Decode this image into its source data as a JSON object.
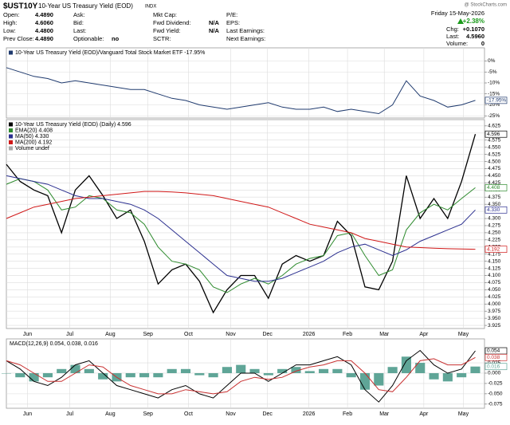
{
  "header": {
    "title": "$UST10Y",
    "subtitle": "10-Year US Treasury Yield (EOD)",
    "exchange": "INDX",
    "source": "@ StockCharts.com",
    "columns": [
      [
        {
          "label": "Open:",
          "value": "4.4890"
        },
        {
          "label": "High:",
          "value": "4.6060"
        },
        {
          "label": "Low:",
          "value": "4.4800"
        },
        {
          "label": "Prev Close:",
          "value": "4.4890"
        }
      ],
      [
        {
          "label": "Ask:"
        },
        {
          "label": "Bid:"
        },
        {
          "label": "Last:"
        },
        {
          "label": "Optionable:",
          "value": "no"
        }
      ],
      [
        {
          "label": "Mkt Cap:"
        },
        {
          "label": "Fwd Dividend:",
          "value": "N/A"
        },
        {
          "label": "Fwd Yield:",
          "value": "N/A"
        },
        {
          "label": "SCTR:"
        }
      ],
      [
        {
          "label": "P/E:"
        },
        {
          "label": "EPS:"
        },
        {
          "label": "Last Earnings:"
        },
        {
          "label": "Next Earnings:"
        }
      ]
    ],
    "date": "Friday 15-May-2026",
    "change_pct": "+2.38%",
    "stats": [
      {
        "label": "Chg:",
        "value": "+0.1070"
      },
      {
        "label": "Last:",
        "value": "4.5960"
      },
      {
        "label": "Volume:",
        "value": "0"
      }
    ]
  },
  "chart_data": [
    {
      "type": "line",
      "grid": true,
      "xlim": [
        0,
        52
      ],
      "ylim": [
        -26,
        6
      ],
      "yticks": [
        {
          "value": 0,
          "label": "0%"
        },
        {
          "value": -5,
          "label": "-5%"
        },
        {
          "value": -10,
          "label": "-10%"
        },
        {
          "value": -15,
          "label": "-15%"
        },
        {
          "value": -20,
          "label": "-20%"
        },
        {
          "value": -25,
          "label": "-25%"
        }
      ],
      "x": [
        0,
        1.5,
        3,
        4.5,
        6,
        7.5,
        9,
        10.5,
        12,
        13.5,
        15,
        16.5,
        18,
        19.5,
        21,
        22.5,
        24,
        25.5,
        27,
        28.5,
        30,
        31.5,
        33,
        34.5,
        36,
        37.5,
        39,
        40.5,
        42,
        43.5,
        45,
        46.5,
        48,
        49.5,
        51
      ],
      "series": [
        {
          "name": "10-Year US Treasury Yield (EOD)/Vanguard Total Stock Market ETF -17.95%",
          "color": "#1f3a6e",
          "last_label": "-17.95%",
          "values": [
            -3,
            -5,
            -7,
            -8,
            -10,
            -9,
            -10,
            -11,
            -12,
            -13,
            -13,
            -15,
            -17,
            -18,
            -20,
            -21,
            -22,
            -21,
            -20,
            -19,
            -21,
            -22,
            -22,
            -21,
            -23,
            -22,
            -23,
            -24,
            -20,
            -9,
            -16,
            -18,
            -21,
            -20,
            -17.95
          ]
        }
      ]
    },
    {
      "type": "line",
      "grid": true,
      "xlim": [
        0,
        52
      ],
      "ylim": [
        3.914,
        4.647
      ],
      "xticks": [
        {
          "value": 2.3,
          "label": "Jun"
        },
        {
          "value": 6.9,
          "label": "Jul"
        },
        {
          "value": 11.3,
          "label": "Aug"
        },
        {
          "value": 15.4,
          "label": "Sep"
        },
        {
          "value": 19.8,
          "label": "Oct"
        },
        {
          "value": 24.4,
          "label": "Nov"
        },
        {
          "value": 28.4,
          "label": "Dec"
        },
        {
          "value": 32.9,
          "label": "2026"
        },
        {
          "value": 37.1,
          "label": "Feb"
        },
        {
          "value": 41.1,
          "label": "Mar"
        },
        {
          "value": 45.4,
          "label": "Apr"
        },
        {
          "value": 49.7,
          "label": "May"
        }
      ],
      "yticks": [
        4.625,
        {
          "value": 4.6,
          "label": "4.600"
        },
        4.575,
        {
          "value": 4.55,
          "label": "4.550"
        },
        4.525,
        {
          "value": 4.5,
          "label": "4.500"
        },
        4.475,
        {
          "value": 4.45,
          "label": "4.450"
        },
        4.425,
        {
          "value": 4.4,
          "label": "4.400"
        },
        4.375,
        {
          "value": 4.35,
          "label": "4.350"
        },
        4.325,
        {
          "value": 4.3,
          "label": "4.300"
        },
        4.275,
        {
          "value": 4.25,
          "label": "4.250"
        },
        4.225,
        {
          "value": 4.2,
          "label": "4.200"
        },
        4.175,
        {
          "value": 4.15,
          "label": "4.150"
        },
        4.125,
        {
          "value": 4.1,
          "label": "4.100"
        },
        4.075,
        {
          "value": 4.05,
          "label": "4.050"
        },
        4.025,
        {
          "value": 4.0,
          "label": "4.000"
        },
        3.975,
        {
          "value": 3.95,
          "label": "3.950"
        },
        3.925
      ],
      "x": [
        0,
        1.5,
        3,
        4.5,
        6,
        7.5,
        9,
        10.5,
        12,
        13.5,
        15,
        16.5,
        18,
        19.5,
        21,
        22.5,
        24,
        25.5,
        27,
        28.5,
        30,
        31.5,
        33,
        34.5,
        36,
        37.5,
        39,
        40.5,
        42,
        43.5,
        45,
        46.5,
        48,
        49.5,
        51
      ],
      "legend_extra": "Volume undef",
      "series": [
        {
          "name": "10-Year US Treasury Yield (EOD) (Daily) 4.596",
          "color": "#000000",
          "last_label": "4.596",
          "values": [
            4.49,
            4.43,
            4.4,
            4.38,
            4.25,
            4.4,
            4.45,
            4.38,
            4.3,
            4.33,
            4.22,
            4.07,
            4.12,
            4.14,
            4.08,
            3.97,
            4.05,
            4.1,
            4.1,
            4.02,
            4.14,
            4.17,
            4.15,
            4.17,
            4.29,
            4.24,
            4.06,
            4.05,
            4.15,
            4.45,
            4.3,
            4.37,
            4.3,
            4.43,
            4.596
          ]
        },
        {
          "name": "EMA(20) 4.408",
          "color": "#2e8b2e",
          "last_label": "4.408",
          "values": [
            4.42,
            4.44,
            4.43,
            4.4,
            4.33,
            4.34,
            4.38,
            4.37,
            4.33,
            4.32,
            4.28,
            4.2,
            4.15,
            4.14,
            4.12,
            4.06,
            4.04,
            4.07,
            4.09,
            4.07,
            4.1,
            4.14,
            4.16,
            4.17,
            4.24,
            4.25,
            4.17,
            4.1,
            4.12,
            4.26,
            4.32,
            4.35,
            4.33,
            4.37,
            4.408
          ]
        },
        {
          "name": "MA(50) 4.330",
          "color": "#2b2f8f",
          "last_label": "4.330",
          "values": [
            4.45,
            4.44,
            4.43,
            4.42,
            4.4,
            4.38,
            4.37,
            4.37,
            4.36,
            4.35,
            4.33,
            4.3,
            4.26,
            4.22,
            4.18,
            4.14,
            4.1,
            4.09,
            4.08,
            4.08,
            4.09,
            4.11,
            4.13,
            4.15,
            4.18,
            4.2,
            4.21,
            4.19,
            4.17,
            4.19,
            4.22,
            4.24,
            4.26,
            4.28,
            4.33
          ]
        },
        {
          "name": "MA(200) 4.192",
          "color": "#d01818",
          "last_label": "4.192",
          "values": [
            4.3,
            4.32,
            4.34,
            4.35,
            4.36,
            4.37,
            4.375,
            4.38,
            4.385,
            4.39,
            4.395,
            4.395,
            4.393,
            4.39,
            4.385,
            4.38,
            4.37,
            4.36,
            4.35,
            4.34,
            4.32,
            4.3,
            4.28,
            4.27,
            4.26,
            4.25,
            4.23,
            4.22,
            4.21,
            4.2,
            4.198,
            4.196,
            4.194,
            4.193,
            4.192
          ]
        }
      ]
    },
    {
      "type": "line",
      "grid": true,
      "xlim": [
        0,
        52
      ],
      "ylim": [
        -0.085,
        0.083
      ],
      "xticks": [
        {
          "value": 2.3,
          "label": "Jun"
        },
        {
          "value": 6.9,
          "label": "Jul"
        },
        {
          "value": 11.3,
          "label": "Aug"
        },
        {
          "value": 15.4,
          "label": "Sep"
        },
        {
          "value": 19.8,
          "label": "Oct"
        },
        {
          "value": 24.4,
          "label": "Nov"
        },
        {
          "value": 28.4,
          "label": "Dec"
        },
        {
          "value": 32.9,
          "label": "2026"
        },
        {
          "value": 37.1,
          "label": "Feb"
        },
        {
          "value": 41.1,
          "label": "Mar"
        },
        {
          "value": 45.4,
          "label": "Apr"
        },
        {
          "value": 49.7,
          "label": "May"
        }
      ],
      "yticks": [
        {
          "value": 0.025,
          "label": "0.025"
        },
        {
          "value": 0,
          "label": "0.000"
        },
        {
          "value": -0.025,
          "label": "-0.025"
        },
        {
          "value": -0.05,
          "label": "-0.050"
        },
        {
          "value": -0.075,
          "label": "-0.075"
        }
      ],
      "x": [
        0,
        1.5,
        3,
        4.5,
        6,
        7.5,
        9,
        10.5,
        12,
        13.5,
        15,
        16.5,
        18,
        19.5,
        21,
        22.5,
        24,
        25.5,
        27,
        28.5,
        30,
        31.5,
        33,
        34.5,
        36,
        37.5,
        39,
        40.5,
        42,
        43.5,
        45,
        46.5,
        48,
        49.5,
        51
      ],
      "legend_title": "MACD(12,26,9) 0.054, 0.038, 0.016",
      "series": [
        {
          "name": "Histogram",
          "style": "bar",
          "color": "#5fa597",
          "last_label": "0.016",
          "values": [
            0.0,
            -0.01,
            -0.02,
            -0.01,
            0.01,
            0.02,
            0.01,
            -0.015,
            -0.02,
            -0.01,
            -0.01,
            -0.01,
            0.01,
            0.01,
            -0.005,
            -0.01,
            0.015,
            0.02,
            0.01,
            -0.005,
            0.01,
            0.015,
            0.005,
            0.01,
            0.01,
            -0.01,
            -0.04,
            -0.03,
            0.015,
            0.04,
            0.025,
            -0.015,
            -0.02,
            -0.01,
            0.016
          ]
        },
        {
          "name": "MACD",
          "color": "#000000",
          "last_label": "0.054",
          "values": [
            0.03,
            0.01,
            -0.02,
            -0.03,
            -0.01,
            0.02,
            0.03,
            0.0,
            -0.03,
            -0.04,
            -0.05,
            -0.06,
            -0.04,
            -0.03,
            -0.05,
            -0.06,
            -0.03,
            0.0,
            0.0,
            -0.02,
            0.0,
            0.02,
            0.02,
            0.03,
            0.04,
            0.02,
            -0.04,
            -0.07,
            -0.03,
            0.03,
            0.055,
            0.02,
            0.0,
            0.01,
            0.054
          ]
        },
        {
          "name": "Signal",
          "color": "#c83030",
          "last_label": "0.038",
          "values": [
            0.03,
            0.02,
            0.0,
            -0.02,
            -0.02,
            0.0,
            0.02,
            0.015,
            -0.01,
            -0.03,
            -0.04,
            -0.05,
            -0.05,
            -0.04,
            -0.045,
            -0.05,
            -0.045,
            -0.02,
            -0.01,
            -0.015,
            -0.01,
            0.005,
            0.015,
            0.02,
            0.03,
            0.03,
            0.0,
            -0.04,
            -0.045,
            -0.01,
            0.03,
            0.035,
            0.02,
            0.02,
            0.038
          ]
        }
      ]
    }
  ]
}
